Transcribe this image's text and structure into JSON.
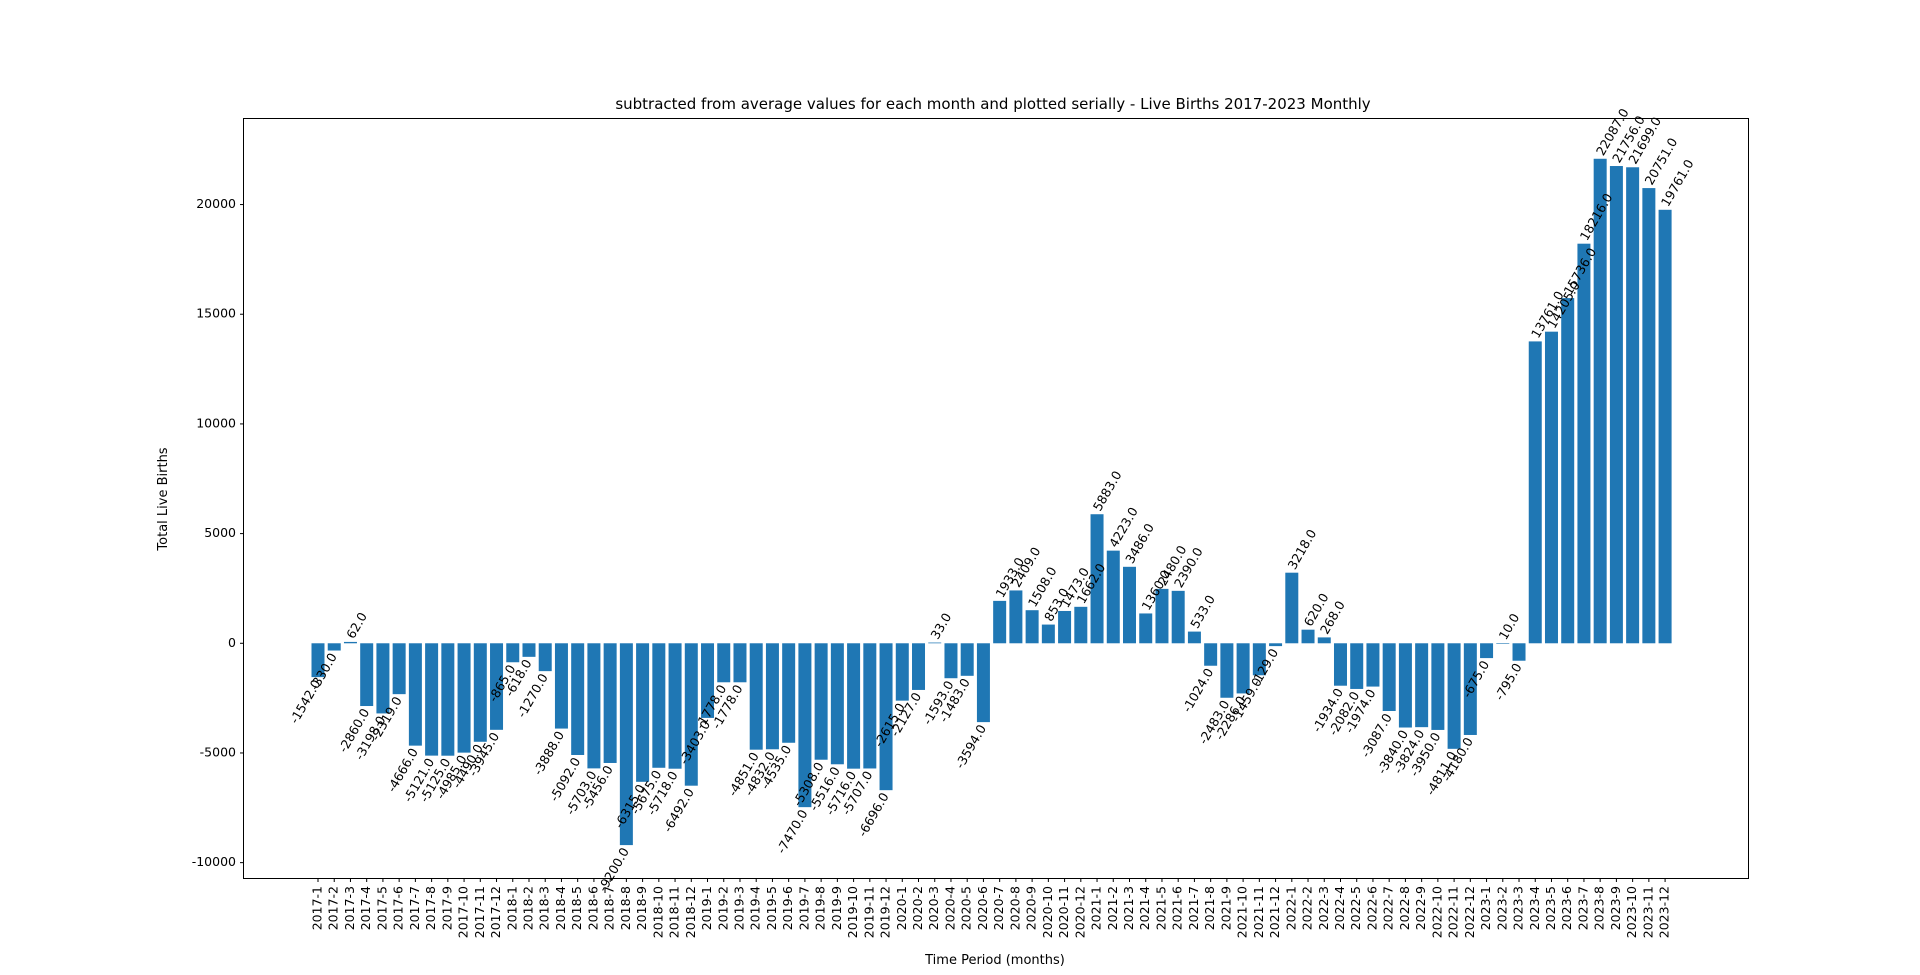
{
  "chart_data": {
    "type": "bar",
    "title": "subtracted from average values for each month and plotted serially -  Live Births 2017-2023 Monthly",
    "xlabel": "Time Period (months)",
    "ylabel": "Total  Live Births",
    "ylim": [
      -10700,
      23900
    ],
    "yticks": [
      -10000,
      -5000,
      0,
      5000,
      10000,
      15000,
      20000
    ],
    "grid": false,
    "bar_color": "#1f77b4",
    "categories": [
      "2017-1",
      "2017-2",
      "2017-3",
      "2017-4",
      "2017-5",
      "2017-6",
      "2017-7",
      "2017-8",
      "2017-9",
      "2017-10",
      "2017-11",
      "2017-12",
      "2018-1",
      "2018-2",
      "2018-3",
      "2018-4",
      "2018-5",
      "2018-6",
      "2018-7",
      "2018-8",
      "2018-9",
      "2018-10",
      "2018-11",
      "2018-12",
      "2019-1",
      "2019-2",
      "2019-3",
      "2019-4",
      "2019-5",
      "2019-6",
      "2019-7",
      "2019-8",
      "2019-9",
      "2019-10",
      "2019-11",
      "2019-12",
      "2020-1",
      "2020-2",
      "2020-3",
      "2020-4",
      "2020-5",
      "2020-6",
      "2020-7",
      "2020-8",
      "2020-9",
      "2020-10",
      "2020-11",
      "2020-12",
      "2021-1",
      "2021-2",
      "2021-3",
      "2021-4",
      "2021-5",
      "2021-6",
      "2021-7",
      "2021-8",
      "2021-9",
      "2021-10",
      "2021-11",
      "2021-12",
      "2022-1",
      "2022-2",
      "2022-3",
      "2022-4",
      "2022-5",
      "2022-6",
      "2022-7",
      "2022-8",
      "2022-9",
      "2022-10",
      "2022-11",
      "2022-12",
      "2023-1",
      "2023-2",
      "2023-3",
      "2023-4",
      "2023-5",
      "2023-6",
      "2023-7",
      "2023-8",
      "2023-9",
      "2023-10",
      "2023-11",
      "2023-12"
    ],
    "values": [
      -1542,
      -330,
      62,
      -2860,
      -3198,
      -2319,
      -4666,
      -5121,
      -5125,
      -4985,
      -4490,
      -3945,
      -865,
      -618,
      -1270,
      -3888,
      -5092,
      -5703,
      -5456,
      -9200,
      -6315,
      -5675,
      -5718,
      -6492,
      -3403,
      -1778,
      -1778,
      -4851,
      -4832,
      -4535,
      -7470,
      -5308,
      -5516,
      -5716,
      -5707,
      -6696,
      -2615,
      -2127,
      33,
      -1593,
      -1483,
      -3594,
      1933,
      2409,
      1508,
      853,
      1473,
      1662,
      5883,
      4223,
      3486,
      1360,
      2480,
      2390,
      533,
      -1024,
      -2483,
      -2286,
      -1459,
      -129,
      3218,
      620,
      268,
      -1934,
      -2082,
      -1974,
      -3087,
      -3840,
      -3824,
      -3950,
      -4811,
      -4180,
      -675,
      10,
      -795,
      13761,
      14205,
      15736,
      18216,
      22087,
      21756,
      21699,
      20751,
      19761
    ],
    "data_labels": [
      "-1542.0",
      "-330.0",
      "62.0",
      "-2860.0",
      "-3198.0",
      "-2319.0",
      "-4666.0",
      "-5121.0",
      "-5125.0",
      "-4985.0",
      "-4490.0",
      "-3945.0",
      "-865.0",
      "-618.0",
      "-1270.0",
      "-3888.0",
      "-5092.0",
      "-5703.0",
      "-5456.0",
      "-9200.0",
      "-6315.0",
      "-5675.0",
      "-5718.0",
      "-6492.0",
      "-3403.0",
      "-1778.0",
      "-1778.0",
      "-4851.0",
      "-4832.0",
      "-4535.0",
      "-7470.0",
      "-5308.0",
      "-5516.0",
      "-5716.0",
      "-5707.0",
      "-6696.0",
      "-2615.0",
      "-2127.0",
      "33.0",
      "-1593.0",
      "-1483.0",
      "-3594.0",
      "1933.0",
      "2409.0",
      "1508.0",
      "853.0",
      "1473.0",
      "1662.0",
      "5883.0",
      "4223.0",
      "3486.0",
      "1360.0",
      "2480.0",
      "2390.0",
      "533.0",
      "-1024.0",
      "-2483.0",
      "-2286.0",
      "-1459.0",
      "-129.0",
      "3218.0",
      "620.0",
      "268.0",
      "-1934.0",
      "-2082.0",
      "-1974.0",
      "-3087.0",
      "-3840.0",
      "-3824.0",
      "-3950.0",
      "-4811.0",
      "-4180.0",
      "-675.0",
      "10.0",
      "-795.0",
      "13761.0",
      "14205.0",
      "15736.0",
      "18216.0",
      "22087.0",
      "21756.0",
      "21699.0",
      "20751.0",
      "19761.0"
    ]
  }
}
